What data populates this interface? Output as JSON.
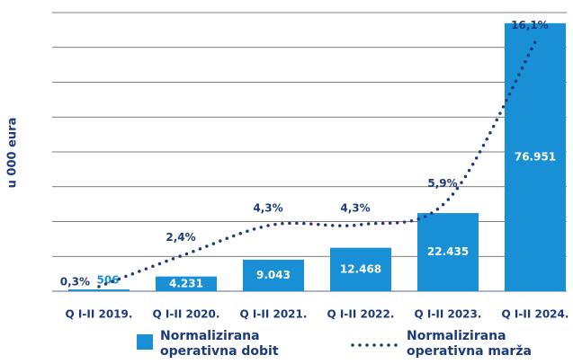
{
  "chart_data": {
    "type": "bar",
    "y_label": "u 000 eura",
    "categories": [
      "Q I-II 2019.",
      "Q I-II 2020.",
      "Q I-II 2021.",
      "Q I-II 2022.",
      "Q I-II 2023.",
      "Q I-II 2024."
    ],
    "ylim": [
      0,
      80000
    ],
    "yticks": [
      0,
      10000,
      20000,
      30000,
      40000,
      50000,
      60000,
      70000,
      80000
    ],
    "grid": true,
    "y2lim": [
      0,
      18
    ],
    "series": [
      {
        "name": "Normalizirana operativna dobit",
        "color": "#1990d5",
        "values": [
          506,
          4231,
          9043,
          12468,
          22435,
          76951
        ],
        "value_labels": [
          "506",
          "4.231",
          "9.043",
          "12.468",
          "22.435",
          "76.951"
        ]
      },
      {
        "name": "Normalizirana operativna marža",
        "color": "#1d3a7a",
        "axis": "y2",
        "type": "line",
        "style": "dotted",
        "values": [
          0.3,
          2.4,
          4.3,
          4.3,
          5.9,
          16.1
        ],
        "value_labels": [
          "0,3%",
          "2,4%",
          "4,3%",
          "4,3%",
          "5,9%",
          "16,1%"
        ]
      }
    ]
  }
}
